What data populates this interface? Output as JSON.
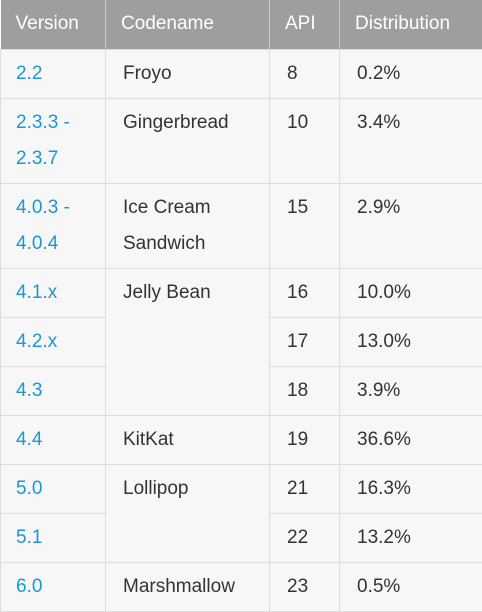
{
  "table": {
    "columns": [
      "Version",
      "Codename",
      "API",
      "Distribution"
    ],
    "groups": [
      {
        "codename": "Froyo",
        "versions": [
          {
            "version": "2.2",
            "api": 8,
            "distribution": "0.2%"
          }
        ]
      },
      {
        "codename": "Gingerbread",
        "versions": [
          {
            "version": "2.3.3 - 2.3.7",
            "api": 10,
            "distribution": "3.4%"
          }
        ]
      },
      {
        "codename": "Ice Cream Sandwich",
        "versions": [
          {
            "version": "4.0.3 - 4.0.4",
            "api": 15,
            "distribution": "2.9%"
          }
        ]
      },
      {
        "codename": "Jelly Bean",
        "versions": [
          {
            "version": "4.1.x",
            "api": 16,
            "distribution": "10.0%"
          },
          {
            "version": "4.2.x",
            "api": 17,
            "distribution": "13.0%"
          },
          {
            "version": "4.3",
            "api": 18,
            "distribution": "3.9%"
          }
        ]
      },
      {
        "codename": "KitKat",
        "versions": [
          {
            "version": "4.4",
            "api": 19,
            "distribution": "36.6%"
          }
        ]
      },
      {
        "codename": "Lollipop",
        "versions": [
          {
            "version": "5.0",
            "api": 21,
            "distribution": "16.3%"
          },
          {
            "version": "5.1",
            "api": 22,
            "distribution": "13.2%"
          }
        ]
      },
      {
        "codename": "Marshmallow",
        "versions": [
          {
            "version": "6.0",
            "api": 23,
            "distribution": "0.5%"
          }
        ]
      }
    ]
  }
}
